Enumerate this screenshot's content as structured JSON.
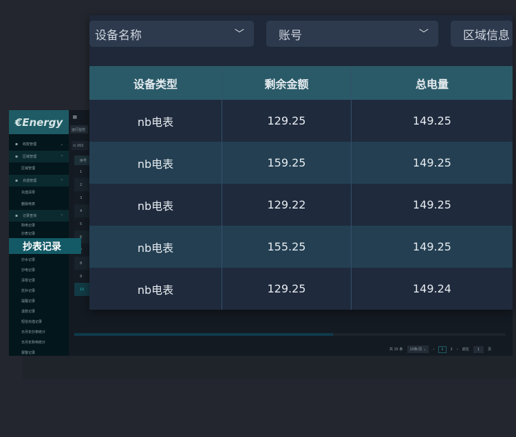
{
  "app": {
    "logo": "€Energy",
    "sidebar": [
      {
        "label": "收款管理",
        "type": "top",
        "icon": "phone-icon",
        "chev": "⌄"
      },
      {
        "label": "区域管理",
        "type": "grp",
        "icon": "map-icon",
        "chev": "⌃"
      },
      {
        "label": "区域管理",
        "type": "sub"
      },
      {
        "label": "充值管理",
        "type": "grp",
        "icon": "card-icon",
        "chev": "⌃"
      },
      {
        "label": "充值清零",
        "type": "sub"
      },
      {
        "label": "删除电表",
        "type": "sub"
      },
      {
        "label": "记录查询",
        "type": "grp",
        "icon": "document-icon",
        "chev": "⌃"
      },
      {
        "label": "购电记录",
        "type": "sub"
      },
      {
        "label": "抄表记录",
        "type": "sub"
      },
      {
        "label": "抄水记录",
        "type": "sub"
      },
      {
        "label": "抄电记录",
        "type": "sub"
      },
      {
        "label": "清零记录",
        "type": "sub"
      },
      {
        "label": "抗补记录",
        "type": "sub"
      },
      {
        "label": "提醒记录",
        "type": "sub"
      },
      {
        "label": "退款记录",
        "type": "sub"
      },
      {
        "label": "短信充值记录",
        "type": "sub"
      },
      {
        "label": "日月年抄表统计",
        "type": "sub"
      },
      {
        "label": "日月年购电统计",
        "type": "sub"
      },
      {
        "label": "报警记录",
        "type": "sub"
      }
    ],
    "highlight": "抄表记录",
    "tab": "运行监控",
    "date": "202",
    "col_index": "序号",
    "row_numbers": [
      "1",
      "2",
      "3",
      "4",
      "5",
      "6",
      "7",
      "8",
      "9",
      "10"
    ],
    "pagination": {
      "total": "共 15 条",
      "page_size": "10条/页",
      "pages": [
        "1",
        "2"
      ],
      "goto": "前往",
      "goto_value": "1",
      "page_suffix": "页"
    }
  },
  "overlay": {
    "filters": [
      {
        "label": "设备名称"
      },
      {
        "label": "账号"
      },
      {
        "label": "区域信息"
      }
    ],
    "columns": [
      "设备类型",
      "剩余金额",
      "总电量"
    ],
    "rows": [
      [
        "nb电表",
        "129.25",
        "149.25"
      ],
      [
        "nb电表",
        "159.25",
        "149.25"
      ],
      [
        "nb电表",
        "129.22",
        "149.25"
      ],
      [
        "nb电表",
        "155.25",
        "149.25"
      ],
      [
        "nb电表",
        "129.25",
        "149.24"
      ]
    ],
    "colors": {
      "header": "#2a5a68",
      "row": "#1f2a3d",
      "row_alt": "#243f52"
    }
  }
}
